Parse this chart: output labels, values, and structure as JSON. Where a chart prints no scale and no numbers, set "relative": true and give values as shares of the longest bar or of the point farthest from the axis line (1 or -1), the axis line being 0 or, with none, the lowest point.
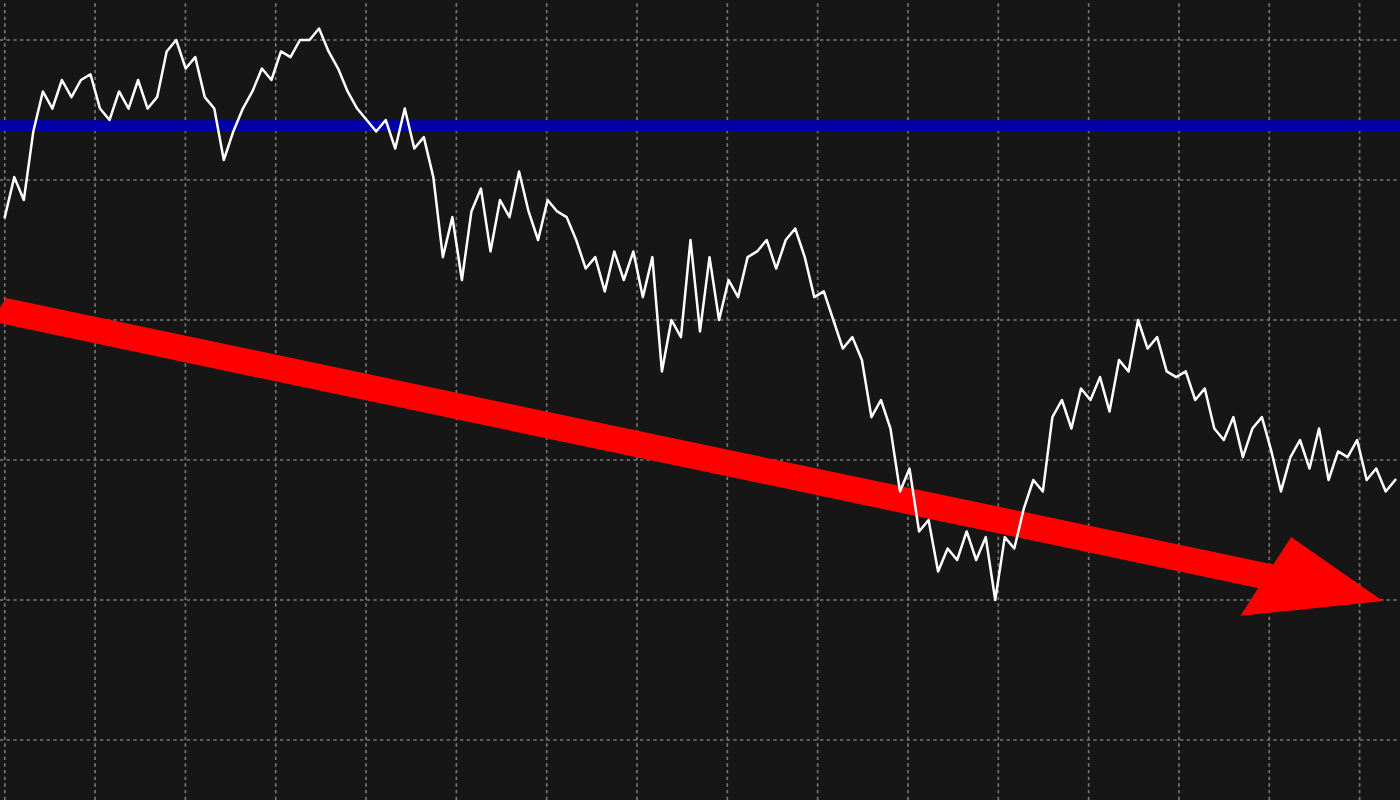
{
  "chart_data": {
    "type": "line",
    "relative": true,
    "grid": true,
    "categories": [
      null,
      null,
      null,
      null,
      null,
      null,
      null,
      null,
      null,
      null,
      null,
      null,
      null,
      null,
      null,
      null,
      null,
      null,
      null,
      null,
      null,
      null,
      null,
      null,
      null,
      null,
      null,
      null,
      null,
      null,
      null,
      null,
      null,
      null,
      null,
      null,
      null,
      null,
      null,
      null,
      null,
      null,
      null,
      null,
      null,
      null,
      null,
      null,
      null,
      null,
      null,
      null,
      null,
      null,
      null,
      null,
      null,
      null,
      null,
      null,
      null,
      null,
      null,
      null,
      null,
      null,
      null,
      null,
      null,
      null,
      null,
      null,
      null,
      null,
      null,
      null,
      null,
      null,
      null,
      null,
      null,
      null,
      null,
      null,
      null,
      null,
      null,
      null,
      null,
      null,
      null,
      null,
      null,
      null,
      null,
      null,
      null,
      null,
      null,
      null,
      null,
      null,
      null,
      null,
      null,
      null,
      null,
      null,
      null,
      null,
      null,
      null,
      null,
      null,
      null,
      null,
      null,
      null,
      null,
      null,
      null,
      null,
      null,
      null,
      null,
      null,
      null,
      null,
      null,
      null,
      null,
      null,
      null,
      null,
      null,
      null,
      null,
      null,
      null,
      null,
      null,
      null,
      null,
      null,
      null,
      null,
      null
    ],
    "series": [
      {
        "color": "#ffffff",
        "values": [
          0.67,
          0.74,
          0.7,
          0.82,
          0.89,
          0.86,
          0.91,
          0.88,
          0.91,
          0.92,
          0.86,
          0.84,
          0.89,
          0.86,
          0.91,
          0.86,
          0.88,
          0.96,
          0.98,
          0.93,
          0.95,
          0.88,
          0.86,
          0.77,
          0.82,
          0.86,
          0.89,
          0.93,
          0.91,
          0.96,
          0.95,
          0.98,
          0.98,
          1.0,
          0.96,
          0.93,
          0.89,
          0.86,
          0.84,
          0.82,
          0.84,
          0.79,
          0.86,
          0.79,
          0.81,
          0.74,
          0.6,
          0.67,
          0.56,
          0.68,
          0.72,
          0.61,
          0.7,
          0.67,
          0.75,
          0.68,
          0.63,
          0.7,
          0.68,
          0.67,
          0.63,
          0.58,
          0.6,
          0.54,
          0.61,
          0.56,
          0.61,
          0.53,
          0.6,
          0.4,
          0.49,
          0.46,
          0.63,
          0.47,
          0.6,
          0.49,
          0.56,
          0.53,
          0.6,
          0.61,
          0.63,
          0.58,
          0.63,
          0.65,
          0.6,
          0.53,
          0.54,
          0.49,
          0.44,
          0.46,
          0.42,
          0.32,
          0.35,
          0.3,
          0.19,
          0.23,
          0.12,
          0.14,
          0.05,
          0.09,
          0.07,
          0.12,
          0.07,
          0.11,
          0.0,
          0.11,
          0.09,
          0.16,
          0.21,
          0.19,
          0.32,
          0.35,
          0.3,
          0.37,
          0.35,
          0.39,
          0.33,
          0.42,
          0.4,
          0.49,
          0.44,
          0.46,
          0.4,
          0.39,
          0.4,
          0.35,
          0.37,
          0.3,
          0.28,
          0.32,
          0.25,
          0.3,
          0.32,
          0.26,
          0.19,
          0.25,
          0.28,
          0.23,
          0.3,
          0.21,
          0.26,
          0.25,
          0.28,
          0.21,
          0.23,
          0.19,
          0.21
        ]
      }
    ],
    "ref_lines": [
      {
        "axis": "y",
        "value": 0.83,
        "color": "#0000aa"
      }
    ]
  }
}
